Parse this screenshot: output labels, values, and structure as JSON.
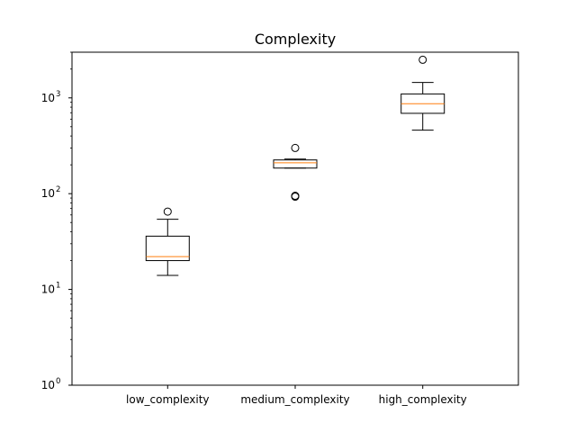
{
  "chart_data": {
    "type": "boxplot",
    "title": "Complexity",
    "xlabel": "",
    "ylabel": "",
    "y_scale": "log",
    "ylim": [
      1,
      3000
    ],
    "y_ticks": [
      {
        "value": 1,
        "base": "10",
        "exp": "0"
      },
      {
        "value": 10,
        "base": "10",
        "exp": "1"
      },
      {
        "value": 100,
        "base": "10",
        "exp": "2"
      },
      {
        "value": 1000,
        "base": "10",
        "exp": "3"
      }
    ],
    "grid": false,
    "categories": [
      "low_complexity",
      "medium_complexity",
      "high_complexity"
    ],
    "boxes": [
      {
        "name": "low_complexity",
        "whisker_low": 14,
        "q1": 20,
        "median": 22,
        "q3": 36,
        "whisker_high": 54,
        "outliers": [
          65
        ]
      },
      {
        "name": "medium_complexity",
        "whisker_low": 185,
        "q1": 185,
        "median": 210,
        "q3": 225,
        "whisker_high": 230,
        "outliers": [
          300,
          93,
          95
        ]
      },
      {
        "name": "high_complexity",
        "whisker_low": 460,
        "q1": 690,
        "median": 870,
        "q3": 1100,
        "whisker_high": 1450,
        "outliers": [
          2500
        ]
      }
    ],
    "colors": {
      "box": "#000000",
      "median": "#ff7f0e",
      "outlier": "#000000"
    }
  }
}
